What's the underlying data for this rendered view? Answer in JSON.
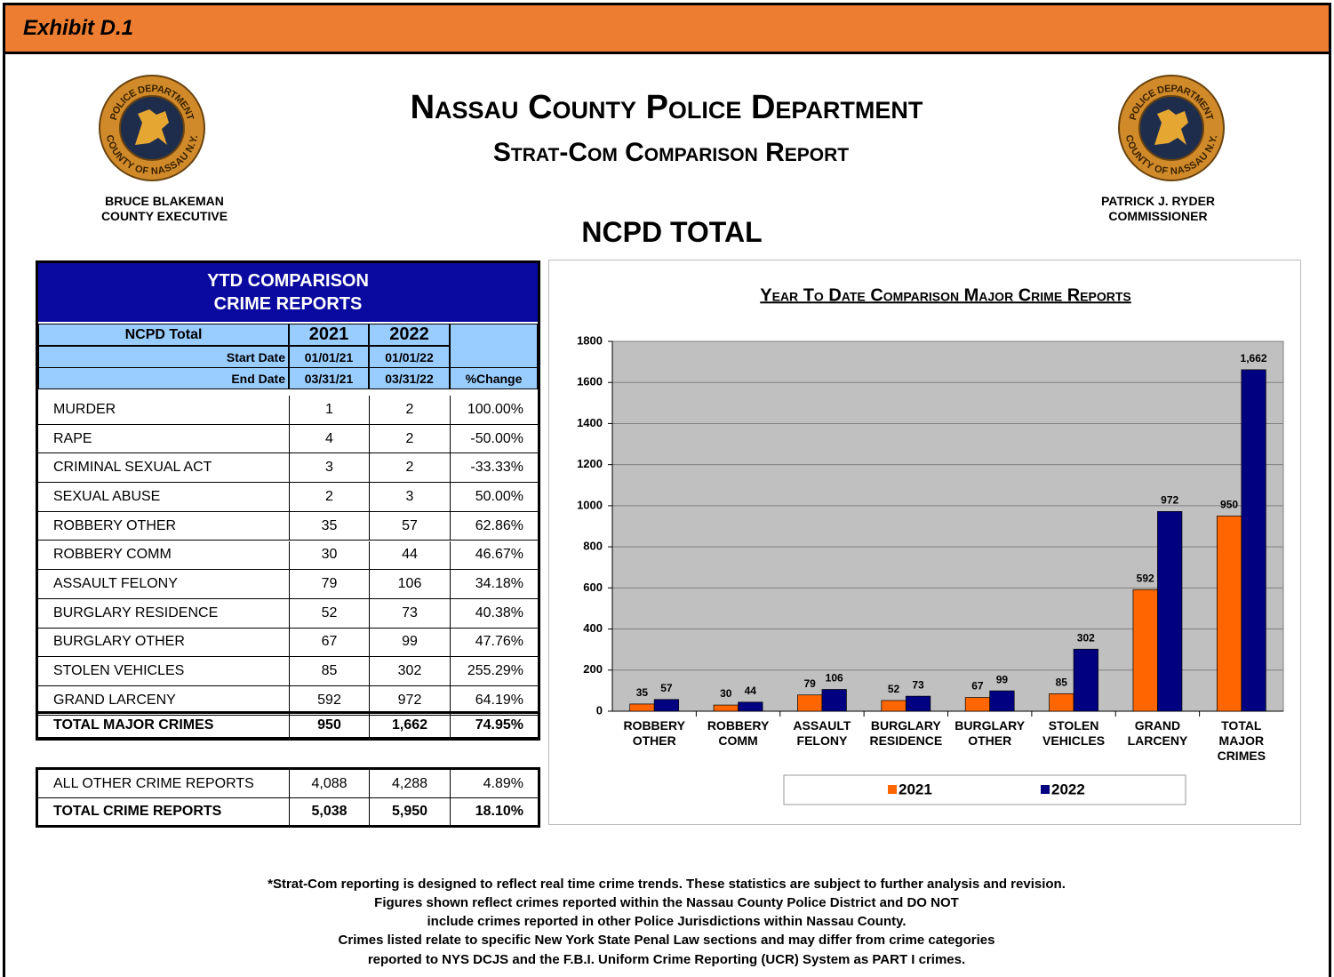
{
  "exhibit": "Exhibit D.1",
  "header": {
    "title": "Nassau County Police Department",
    "subtitle": "Strat-Com Comparison Report",
    "seal": {
      "top": "POLICE DEPARTMENT",
      "bottom": "COUNTY OF NASSAU N.Y."
    },
    "left": [
      "BRUCE BLAKEMAN",
      "COUNTY EXECUTIVE"
    ],
    "right": [
      "PATRICK J. RYDER",
      "COMMISSIONER"
    ]
  },
  "section_title": "NCPD TOTAL",
  "table": {
    "title": [
      "YTD COMPARISON",
      "CRIME REPORTS"
    ],
    "head": {
      "label": "NCPD Total",
      "years": [
        "2021",
        "2022"
      ],
      "start_label": "Start Date",
      "start": [
        "01/01/21",
        "01/01/22"
      ],
      "end_label": "End Date",
      "end": [
        "03/31/21",
        "03/31/22"
      ],
      "change_label": "%Change"
    },
    "rows": [
      [
        "MURDER",
        "1",
        "2",
        "100.00%"
      ],
      [
        "RAPE",
        "4",
        "2",
        "-50.00%"
      ],
      [
        "CRIMINAL SEXUAL ACT",
        "3",
        "2",
        "-33.33%"
      ],
      [
        "SEXUAL ABUSE",
        "2",
        "3",
        "50.00%"
      ],
      [
        "ROBBERY OTHER",
        "35",
        "57",
        "62.86%"
      ],
      [
        "ROBBERY COMM",
        "30",
        "44",
        "46.67%"
      ],
      [
        "ASSAULT FELONY",
        "79",
        "106",
        "34.18%"
      ],
      [
        "BURGLARY RESIDENCE",
        "52",
        "73",
        "40.38%"
      ],
      [
        "BURGLARY OTHER",
        "67",
        "99",
        "47.76%"
      ],
      [
        "STOLEN VEHICLES",
        "85",
        "302",
        "255.29%"
      ],
      [
        "GRAND LARCENY",
        "592",
        "972",
        "64.19%"
      ]
    ],
    "total": [
      "TOTAL MAJOR CRIMES",
      "950",
      "1,662",
      "74.95%"
    ],
    "other_rows": [
      [
        "ALL OTHER CRIME REPORTS",
        "4,088",
        "4,288",
        "4.89%"
      ],
      [
        "TOTAL CRIME REPORTS",
        "5,038",
        "5,950",
        "18.10%"
      ]
    ]
  },
  "chart_data": {
    "type": "bar",
    "title": "Year To Date Comparison Major Crime Reports",
    "categories": [
      "ROBBERY OTHER",
      "ROBBERY COMM",
      "ASSAULT FELONY",
      "BURGLARY RESIDENCE",
      "BURGLARY OTHER",
      "STOLEN VEHICLES",
      "GRAND LARCENY",
      "TOTAL MAJOR CRIMES"
    ],
    "series": [
      {
        "name": "2021",
        "color": "#ff6600",
        "values": [
          35,
          30,
          79,
          52,
          67,
          85,
          592,
          950
        ]
      },
      {
        "name": "2022",
        "color": "#000080",
        "values": [
          57,
          44,
          106,
          73,
          99,
          302,
          972,
          1662
        ],
        "value_labels": [
          "57",
          "44",
          "106",
          "73",
          "99",
          "302",
          "972",
          "1,662"
        ]
      }
    ],
    "ylim": [
      0,
      1800
    ],
    "yticks": [
      0,
      200,
      400,
      600,
      800,
      1000,
      1200,
      1400,
      1600,
      1800
    ],
    "grid": true,
    "legend": "bottom"
  },
  "footnote": [
    "*Strat-Com reporting is designed to reflect real time crime trends.  These statistics are subject to further analysis and revision.",
    "Figures shown reflect crimes reported within the Nassau County Police District and DO NOT",
    "include crimes reported in other Police Jurisdictions within Nassau County.",
    "Crimes listed relate to specific New York State Penal Law sections and may differ from crime categories",
    "reported to NYS DCJS and the F.B.I. Uniform Crime Reporting (UCR) System as PART I crimes."
  ]
}
